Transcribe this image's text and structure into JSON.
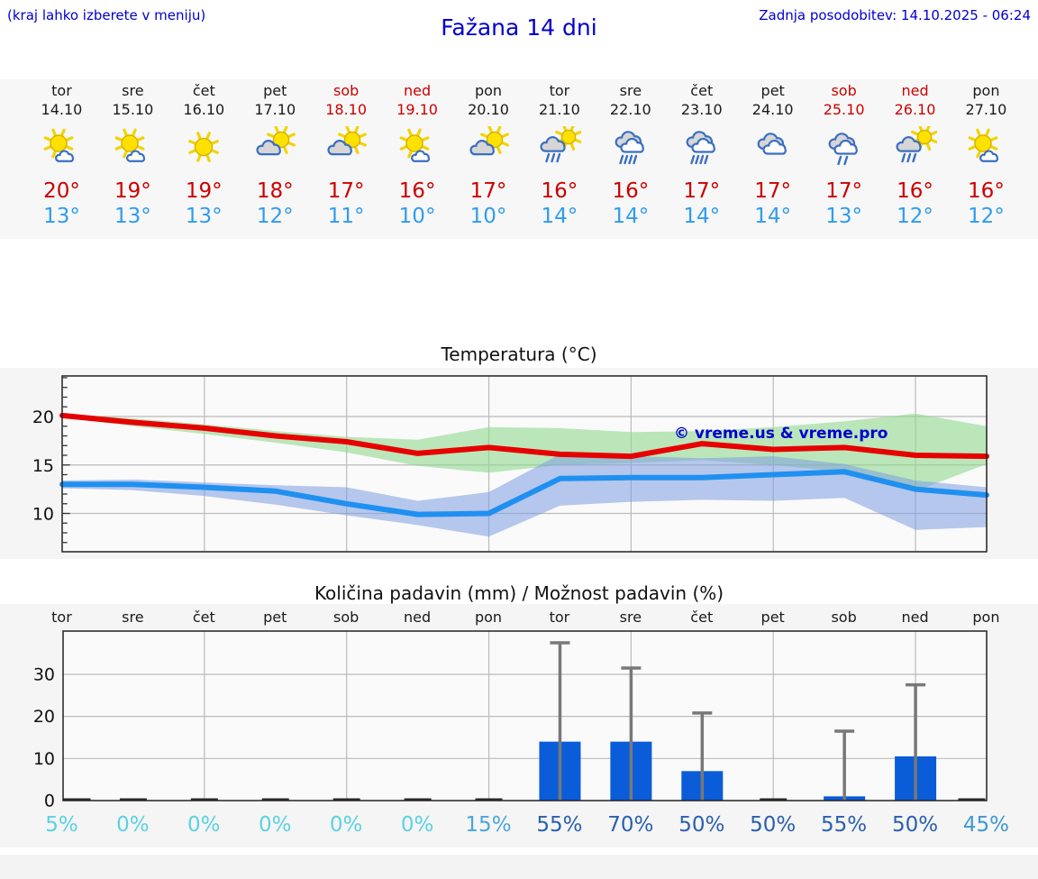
{
  "header": {
    "hint": "(kraj lahko izberete v meniju)",
    "title": "Fažana 14 dni",
    "updated": "Zadnja posodobitev: 14.10.2025 - 06:24"
  },
  "colors": {
    "link_blue": "#0000cd",
    "day_red": "#cc0000",
    "tmax_red": "#cc0000",
    "tmin_blue": "#2f9cf0",
    "max_line": "#e60000",
    "min_line": "#2090f0",
    "max_band": "#90d890",
    "min_band": "#7b9ce0",
    "bar_blue": "#0a5cd8",
    "whisker_gray": "#787878",
    "grid_gray": "#bbbbbb",
    "border_dark": "#222222"
  },
  "forecast": {
    "days": [
      {
        "name": "tor",
        "date": "14.10",
        "weekend": false,
        "icon": "sun-small-cloud",
        "tmax": "20°",
        "tmin": "13°"
      },
      {
        "name": "sre",
        "date": "15.10",
        "weekend": false,
        "icon": "sun-small-cloud",
        "tmax": "19°",
        "tmin": "13°"
      },
      {
        "name": "čet",
        "date": "16.10",
        "weekend": false,
        "icon": "sun",
        "tmax": "19°",
        "tmin": "13°"
      },
      {
        "name": "pet",
        "date": "17.10",
        "weekend": false,
        "icon": "sun-cloud",
        "tmax": "18°",
        "tmin": "12°"
      },
      {
        "name": "sob",
        "date": "18.10",
        "weekend": true,
        "icon": "sun-cloud",
        "tmax": "17°",
        "tmin": "11°"
      },
      {
        "name": "ned",
        "date": "19.10",
        "weekend": true,
        "icon": "sun-small-cloud",
        "tmax": "16°",
        "tmin": "10°"
      },
      {
        "name": "pon",
        "date": "20.10",
        "weekend": false,
        "icon": "sun-cloud",
        "tmax": "17°",
        "tmin": "10°"
      },
      {
        "name": "tor",
        "date": "21.10",
        "weekend": false,
        "icon": "sun-rain",
        "tmax": "16°",
        "tmin": "14°"
      },
      {
        "name": "sre",
        "date": "22.10",
        "weekend": false,
        "icon": "cloud-rain",
        "tmax": "16°",
        "tmin": "14°"
      },
      {
        "name": "čet",
        "date": "23.10",
        "weekend": false,
        "icon": "cloud-rain",
        "tmax": "17°",
        "tmin": "14°"
      },
      {
        "name": "pet",
        "date": "24.10",
        "weekend": false,
        "icon": "clouds",
        "tmax": "17°",
        "tmin": "14°"
      },
      {
        "name": "sob",
        "date": "25.10",
        "weekend": true,
        "icon": "cloud-light-rain",
        "tmax": "17°",
        "tmin": "13°"
      },
      {
        "name": "ned",
        "date": "26.10",
        "weekend": true,
        "icon": "sun-rain",
        "tmax": "16°",
        "tmin": "12°"
      },
      {
        "name": "pon",
        "date": "27.10",
        "weekend": false,
        "icon": "sun-small-cloud",
        "tmax": "16°",
        "tmin": "12°"
      }
    ]
  },
  "chart_data": [
    {
      "type": "line",
      "title": "Temperatura (°C)",
      "watermark": "© vreme.us & vreme.pro",
      "categories": [
        "14.10",
        "15.10",
        "16.10",
        "17.10",
        "18.10",
        "19.10",
        "20.10",
        "21.10",
        "22.10",
        "23.10",
        "24.10",
        "25.10",
        "26.10",
        "27.10"
      ],
      "yticks": [
        10,
        15,
        20
      ],
      "ylim": [
        6.0,
        24.2
      ],
      "grid": true,
      "series": [
        {
          "name": "max-temp",
          "color": "#e60000",
          "values": [
            20.1,
            19.4,
            18.8,
            18.0,
            17.4,
            16.2,
            16.8,
            16.1,
            15.9,
            17.2,
            16.6,
            16.8,
            16.0,
            15.9
          ]
        },
        {
          "name": "min-temp",
          "color": "#2090f0",
          "values": [
            13.0,
            13.0,
            12.7,
            12.3,
            11.0,
            9.9,
            10.0,
            13.6,
            13.7,
            13.7,
            14.0,
            14.3,
            12.5,
            11.9
          ]
        }
      ],
      "bands": [
        {
          "name": "max-range",
          "color": "#90d890",
          "opacity": 0.6,
          "upper": [
            20.3,
            19.8,
            19.2,
            18.5,
            17.9,
            17.6,
            18.9,
            18.8,
            18.4,
            18.5,
            18.9,
            19.5,
            20.3,
            19.0
          ],
          "lower": [
            19.9,
            19.0,
            18.2,
            17.3,
            16.3,
            14.9,
            14.2,
            15.0,
            15.2,
            15.5,
            15.0,
            14.3,
            12.3,
            15.1
          ]
        },
        {
          "name": "min-range",
          "color": "#7b9ce0",
          "opacity": 0.55,
          "upper": [
            13.4,
            13.5,
            13.2,
            12.9,
            12.7,
            11.3,
            12.2,
            16.1,
            15.9,
            15.7,
            15.9,
            15.1,
            13.4,
            12.7
          ],
          "lower": [
            12.6,
            12.4,
            11.8,
            10.9,
            9.8,
            8.8,
            7.6,
            10.8,
            11.2,
            11.4,
            11.3,
            11.6,
            8.3,
            8.6
          ]
        }
      ]
    },
    {
      "type": "bar",
      "title": "Količina padavin (mm) / Možnost padavin (%)",
      "categories": [
        "tor",
        "sre",
        "čet",
        "pet",
        "sob",
        "ned",
        "pon",
        "tor",
        "sre",
        "čet",
        "pet",
        "sob",
        "ned",
        "pon"
      ],
      "values_mm": [
        0,
        0,
        0,
        0,
        0,
        0,
        0,
        14,
        14,
        7,
        0,
        1,
        10.5,
        0
      ],
      "whisker_max_mm": [
        0,
        0,
        0,
        0,
        0,
        0,
        0,
        37.5,
        31.5,
        20.8,
        0,
        16.5,
        27.5,
        0
      ],
      "yticks": [
        0,
        10,
        20,
        30
      ],
      "ylim": [
        0,
        40.5
      ],
      "grid": true,
      "bar_color": "#0a5cd8",
      "whisker_color": "#787878",
      "probabilities": [
        {
          "label": "5%",
          "color": "#5ad2e2"
        },
        {
          "label": "0%",
          "color": "#5ad2e2"
        },
        {
          "label": "0%",
          "color": "#5ad2e2"
        },
        {
          "label": "0%",
          "color": "#5ad2e2"
        },
        {
          "label": "0%",
          "color": "#5ad2e2"
        },
        {
          "label": "0%",
          "color": "#5ad2e2"
        },
        {
          "label": "15%",
          "color": "#4aa6da"
        },
        {
          "label": "55%",
          "color": "#2a5fb0"
        },
        {
          "label": "70%",
          "color": "#2a5fb0"
        },
        {
          "label": "50%",
          "color": "#2a5fb0"
        },
        {
          "label": "50%",
          "color": "#2a5fb0"
        },
        {
          "label": "55%",
          "color": "#2a5fb0"
        },
        {
          "label": "50%",
          "color": "#2a5fb0"
        },
        {
          "label": "45%",
          "color": "#3d99d2"
        }
      ]
    }
  ]
}
